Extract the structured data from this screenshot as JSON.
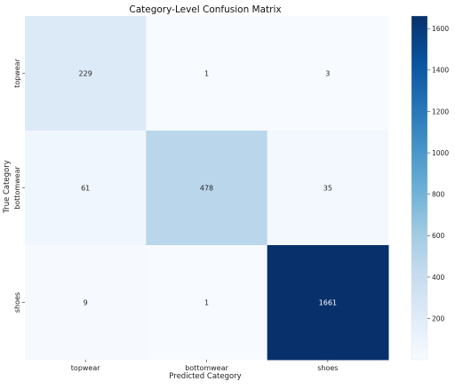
{
  "chart_data": {
    "type": "heatmap",
    "title": "Category-Level Confusion Matrix",
    "xlabel": "Predicted Category",
    "ylabel": "True Category",
    "x_categories": [
      "topwear",
      "bottomwear",
      "shoes"
    ],
    "y_categories": [
      "topwear",
      "bottomwear",
      "shoes"
    ],
    "values": [
      [
        229,
        1,
        3
      ],
      [
        61,
        478,
        35
      ],
      [
        9,
        1,
        1661
      ]
    ],
    "colormap": "Blues",
    "colorbar": {
      "min": 1,
      "max": 1661,
      "ticks": [
        200,
        400,
        600,
        800,
        1000,
        1200,
        1400,
        1600
      ]
    },
    "annotation_color_dark": "#262626",
    "annotation_color_light": "#ffffff"
  }
}
